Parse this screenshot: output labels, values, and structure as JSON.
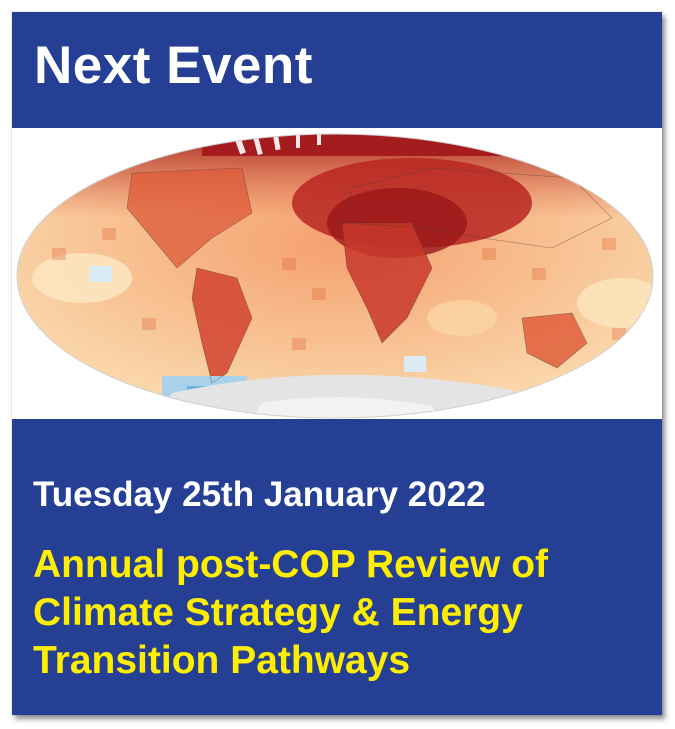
{
  "header": {
    "title": "Next Event"
  },
  "image": {
    "icon": "world-temperature-anomaly-map"
  },
  "event": {
    "date": "Tuesday 25th January 2022",
    "title_lines": [
      "Annual post-COP Review of",
      "Climate Strategy & Energy",
      "Transition Pathways"
    ]
  },
  "colors": {
    "header_bg": "#243f93",
    "footer_bg": "#243f93",
    "date_text": "#ffffff",
    "title_text": "#ffee00"
  }
}
